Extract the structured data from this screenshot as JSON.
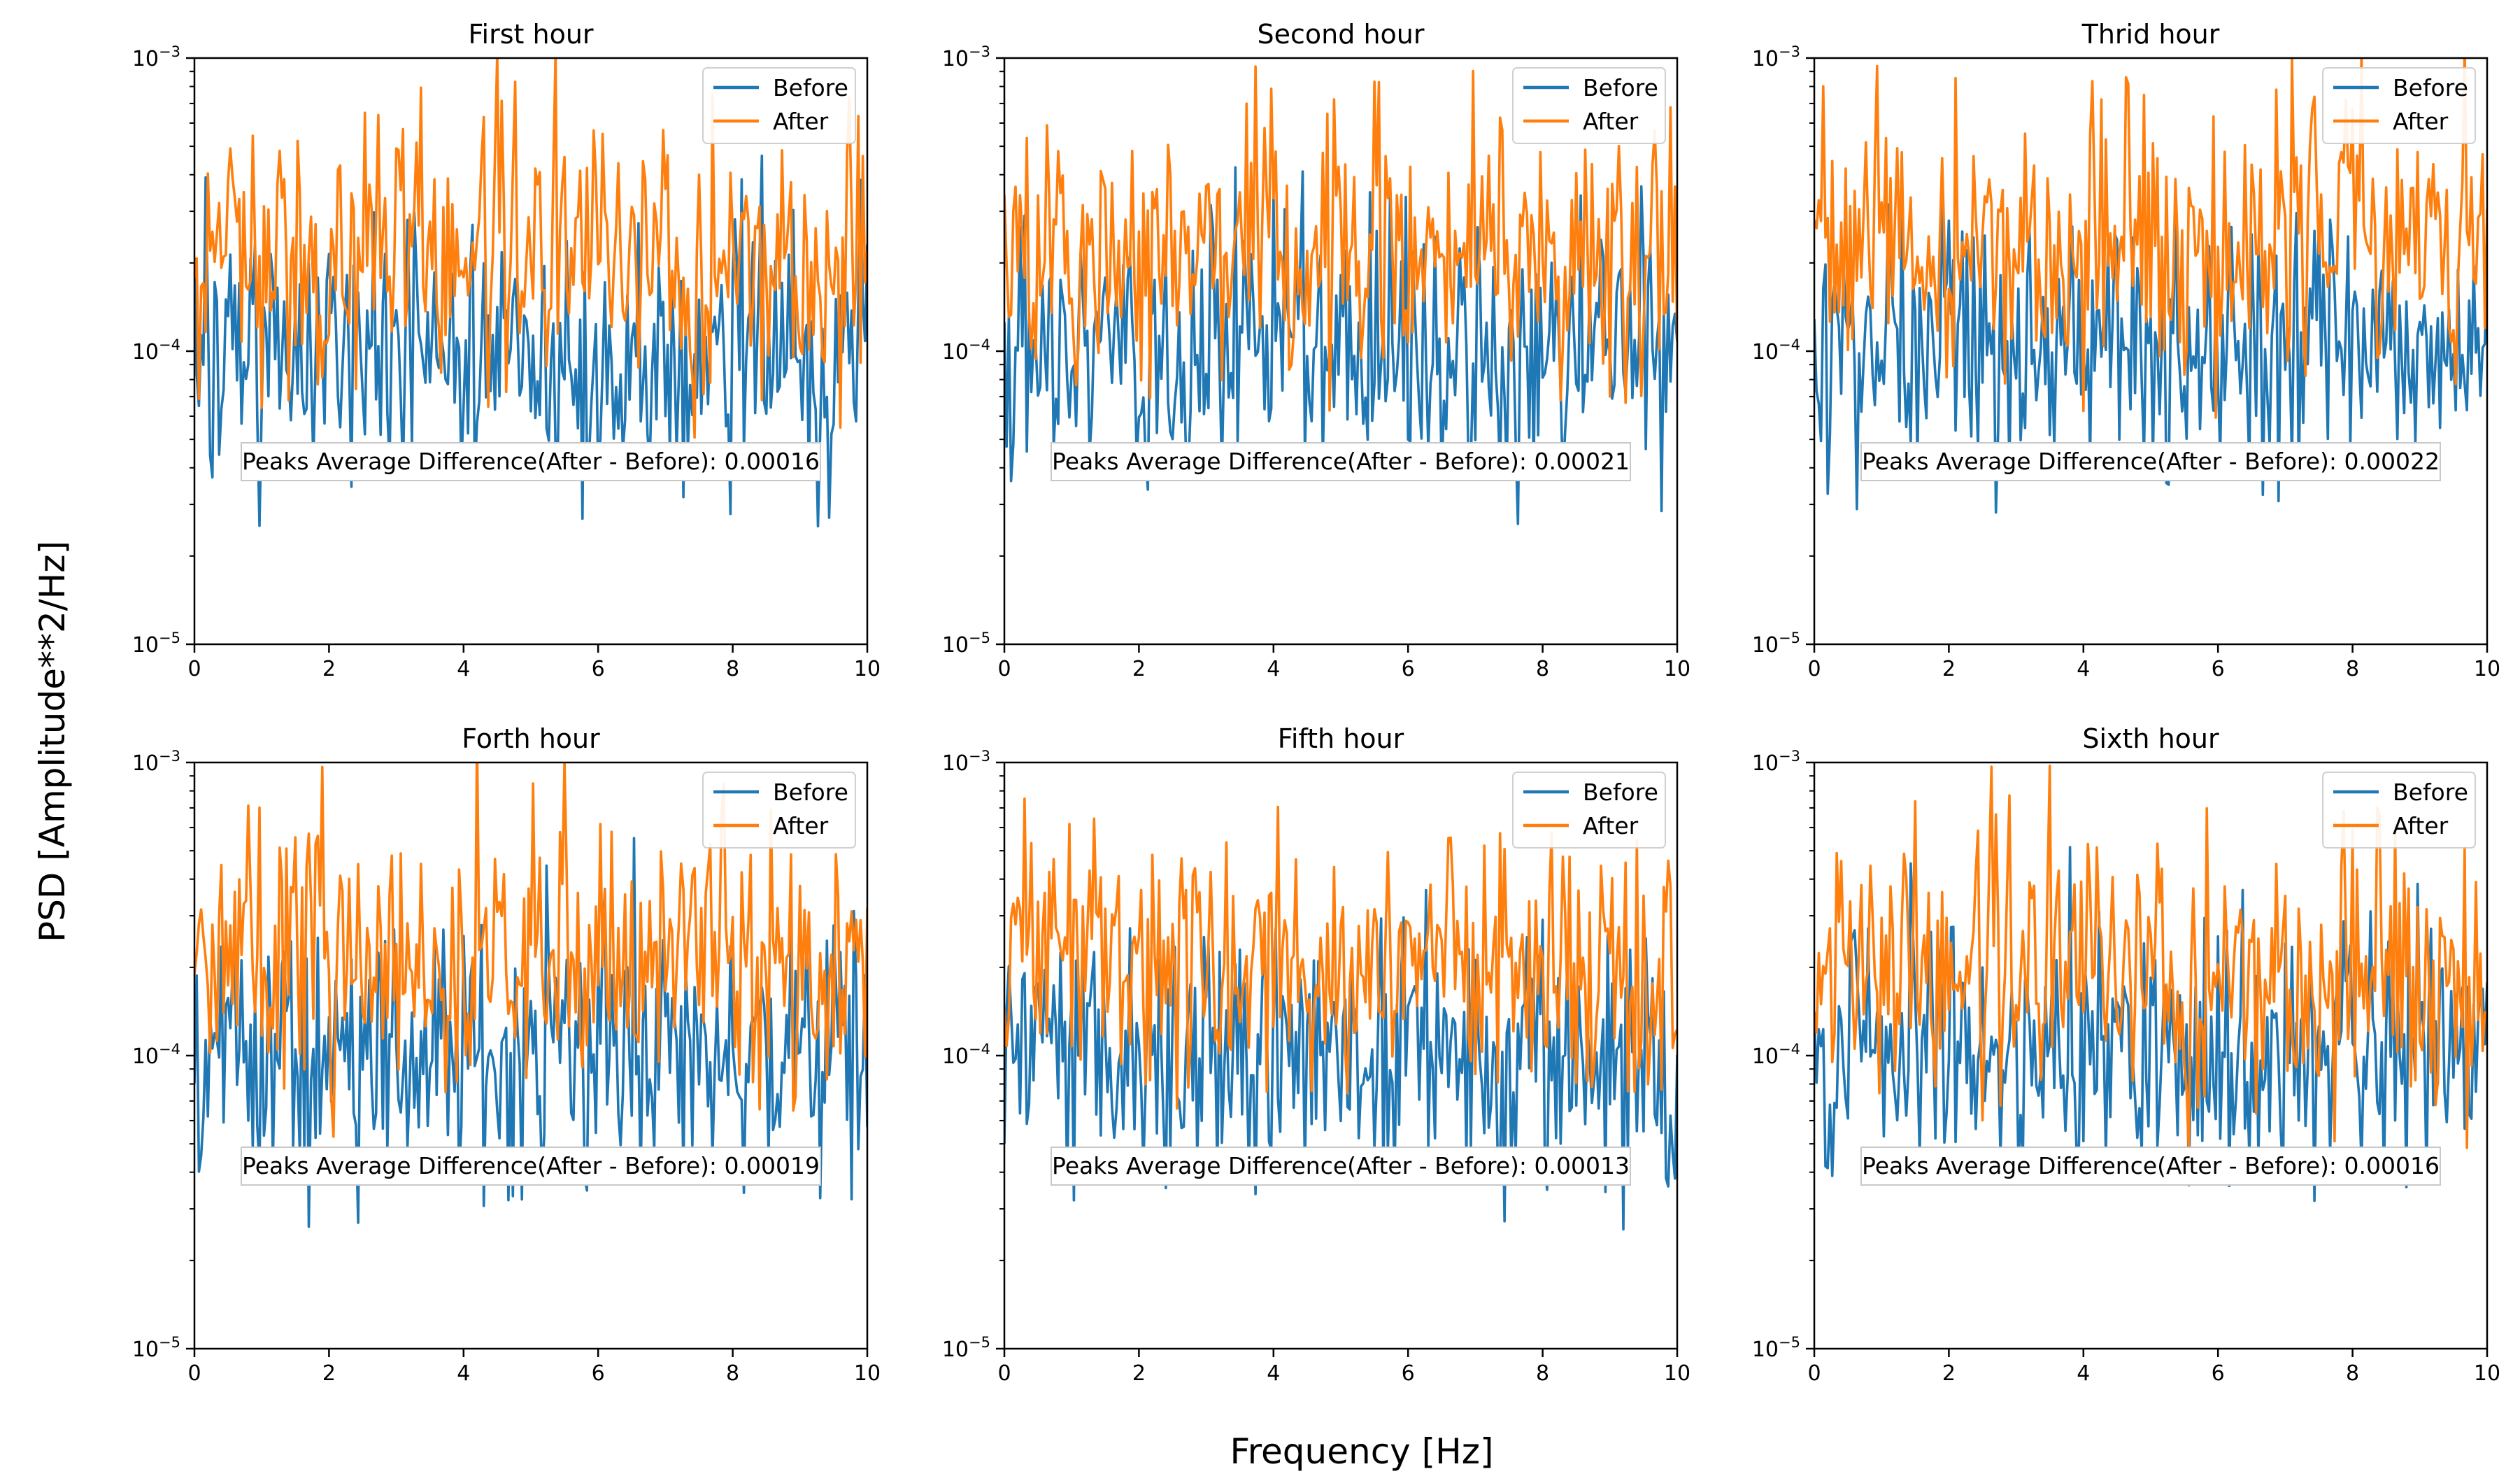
{
  "figure": {
    "xlabel": "Frequency [Hz]",
    "ylabel": "PSD [Amplitude**2/Hz]"
  },
  "colors": {
    "before": "#1f77b4",
    "after": "#ff7f0e"
  },
  "chart_data": [
    {
      "type": "line",
      "title": "First hour",
      "xlim": [
        0,
        10
      ],
      "ylim_log10": [
        -5,
        -3
      ],
      "yscale": "log",
      "xticks": [
        "0",
        "2",
        "4",
        "6",
        "8",
        "10"
      ],
      "yticks": [
        "-5",
        "-4",
        "-3"
      ],
      "legend": [
        "Before",
        "After"
      ],
      "legend_position": "top-right",
      "annotation": "Peaks Average Difference(After - Before): 0.00016",
      "series": [
        {
          "name": "Before",
          "level": 0.0001,
          "seed": 11
        },
        {
          "name": "After",
          "level": 0.000215,
          "seed": 12
        }
      ]
    },
    {
      "type": "line",
      "title": "Second hour",
      "xlim": [
        0,
        10
      ],
      "ylim_log10": [
        -5,
        -3
      ],
      "yscale": "log",
      "xticks": [
        "0",
        "2",
        "4",
        "6",
        "8",
        "10"
      ],
      "yticks": [
        "-5",
        "-4",
        "-3"
      ],
      "legend": [
        "Before",
        "After"
      ],
      "legend_position": "top-right",
      "annotation": "Peaks Average Difference(After - Before): 0.00021",
      "series": [
        {
          "name": "Before",
          "level": 9.7e-05,
          "seed": 21
        },
        {
          "name": "After",
          "level": 0.000235,
          "seed": 22
        }
      ]
    },
    {
      "type": "line",
      "title": "Thrid hour",
      "xlim": [
        0,
        10
      ],
      "ylim_log10": [
        -5,
        -3
      ],
      "yscale": "log",
      "xticks": [
        "0",
        "2",
        "4",
        "6",
        "8",
        "10"
      ],
      "yticks": [
        "-5",
        "-4",
        "-3"
      ],
      "legend": [
        "Before",
        "After"
      ],
      "legend_position": "top-right",
      "annotation": "Peaks Average Difference(After - Before): 0.00022",
      "series": [
        {
          "name": "Before",
          "level": 0.0001,
          "seed": 31
        },
        {
          "name": "After",
          "level": 0.000245,
          "seed": 32
        }
      ]
    },
    {
      "type": "line",
      "title": "Forth hour",
      "xlim": [
        0,
        10
      ],
      "ylim_log10": [
        -5,
        -3
      ],
      "yscale": "log",
      "xticks": [
        "0",
        "2",
        "4",
        "6",
        "8",
        "10"
      ],
      "yticks": [
        "-5",
        "-4",
        "-3"
      ],
      "legend": [
        "Before",
        "After"
      ],
      "legend_position": "top-right",
      "annotation": "Peaks Average Difference(After - Before): 0.00019",
      "series": [
        {
          "name": "Before",
          "level": 0.0001,
          "seed": 41
        },
        {
          "name": "After",
          "level": 0.00021,
          "seed": 42
        }
      ]
    },
    {
      "type": "line",
      "title": "Fifth hour",
      "xlim": [
        0,
        10
      ],
      "ylim_log10": [
        -5,
        -3
      ],
      "yscale": "log",
      "xticks": [
        "0",
        "2",
        "4",
        "6",
        "8",
        "10"
      ],
      "yticks": [
        "-5",
        "-4",
        "-3"
      ],
      "legend": [
        "Before",
        "After"
      ],
      "legend_position": "top-right",
      "annotation": "Peaks Average Difference(After - Before): 0.00013",
      "series": [
        {
          "name": "Before",
          "level": 0.0001,
          "seed": 51
        },
        {
          "name": "After",
          "level": 0.000205,
          "seed": 52
        }
      ]
    },
    {
      "type": "line",
      "title": "Sixth hour",
      "xlim": [
        0,
        10
      ],
      "ylim_log10": [
        -5,
        -3
      ],
      "yscale": "log",
      "xticks": [
        "0",
        "2",
        "4",
        "6",
        "8",
        "10"
      ],
      "yticks": [
        "-5",
        "-4",
        "-3"
      ],
      "legend": [
        "Before",
        "After"
      ],
      "legend_position": "top-right",
      "annotation": "Peaks Average Difference(After - Before): 0.00016",
      "series": [
        {
          "name": "Before",
          "level": 0.0001,
          "seed": 61
        },
        {
          "name": "After",
          "level": 0.0002,
          "seed": 62
        }
      ]
    }
  ]
}
